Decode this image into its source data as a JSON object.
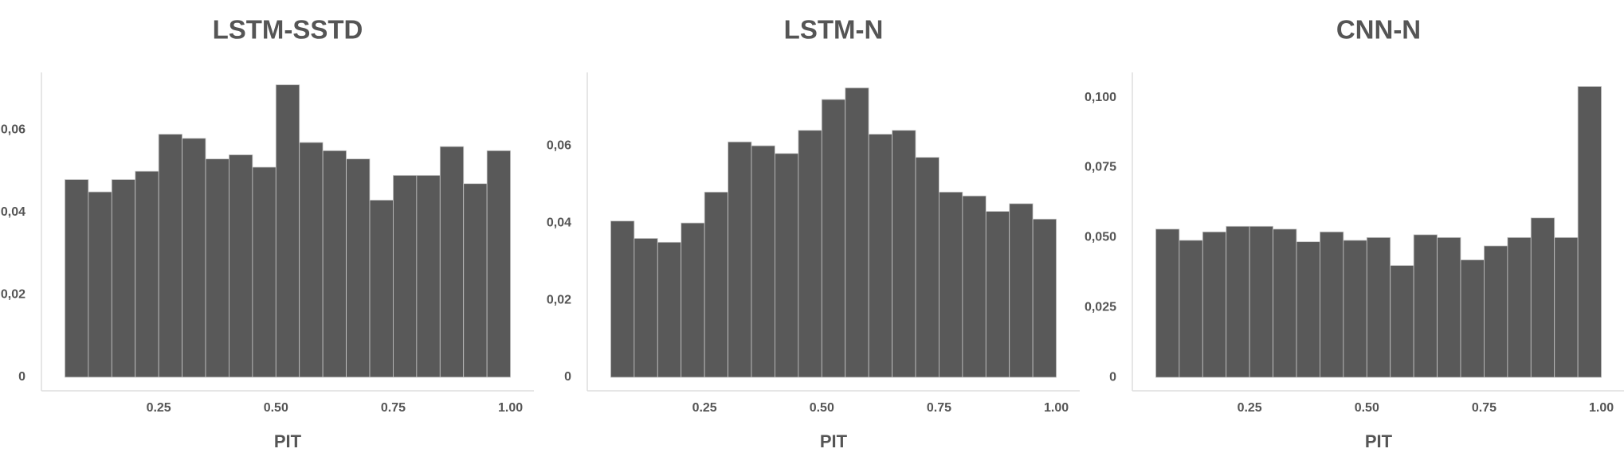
{
  "chart_data": [
    {
      "type": "histogram",
      "title": "LSTM-SSTD",
      "x_label": "PIT",
      "color": "#595959",
      "bins": [
        0.05,
        0.1,
        0.15,
        0.2,
        0.25,
        0.3,
        0.35,
        0.4,
        0.45,
        0.5,
        0.55,
        0.6,
        0.65,
        0.7,
        0.75,
        0.8,
        0.85,
        0.9,
        0.95,
        1.0
      ],
      "values": [
        0.048,
        0.045,
        0.048,
        0.05,
        0.059,
        0.058,
        0.053,
        0.054,
        0.051,
        0.071,
        0.057,
        0.055,
        0.053,
        0.043,
        0.049,
        0.049,
        0.056,
        0.047,
        0.055
      ],
      "xlim": [
        0,
        1.05
      ],
      "ylim": [
        -0.0033,
        0.074
      ],
      "xticks": [
        0.25,
        {
          "value": 0.5,
          "label": "0.50"
        },
        0.75,
        {
          "value": 1.0,
          "label": "1.00"
        }
      ],
      "yticks": [
        0,
        {
          "value": 0.02,
          "label": "0,02"
        },
        {
          "value": 0.04,
          "label": "0,04"
        },
        {
          "value": 0.06,
          "label": "0,06"
        }
      ]
    },
    {
      "type": "histogram",
      "title": "LSTM-N",
      "x_label": "PIT",
      "color": "#595959",
      "bins": [
        0.05,
        0.1,
        0.15,
        0.2,
        0.25,
        0.3,
        0.35,
        0.4,
        0.45,
        0.5,
        0.55,
        0.6,
        0.65,
        0.7,
        0.75,
        0.8,
        0.85,
        0.9,
        0.95,
        1.0
      ],
      "values": [
        0.0405,
        0.036,
        0.035,
        0.04,
        0.048,
        0.061,
        0.06,
        0.058,
        0.064,
        0.072,
        0.075,
        0.063,
        0.064,
        0.057,
        0.048,
        0.047,
        0.043,
        0.045,
        0.041
      ],
      "xlim": [
        0,
        1.05
      ],
      "ylim": [
        -0.0035,
        0.079
      ],
      "xticks": [
        0.25,
        {
          "value": 0.5,
          "label": "0.50"
        },
        0.75,
        {
          "value": 1.0,
          "label": "1.00"
        }
      ],
      "yticks": [
        0,
        {
          "value": 0.02,
          "label": "0,02"
        },
        {
          "value": 0.04,
          "label": "0,04"
        },
        {
          "value": 0.06,
          "label": "0,06"
        }
      ]
    },
    {
      "type": "histogram",
      "title": "CNN-N",
      "x_label": "PIT",
      "color": "#595959",
      "bins": [
        0.05,
        0.1,
        0.15,
        0.2,
        0.25,
        0.3,
        0.35,
        0.4,
        0.45,
        0.5,
        0.55,
        0.6,
        0.65,
        0.7,
        0.75,
        0.8,
        0.85,
        0.9,
        0.95,
        1.0
      ],
      "values": [
        0.053,
        0.049,
        0.052,
        0.054,
        0.054,
        0.053,
        0.0485,
        0.052,
        0.049,
        0.05,
        0.04,
        0.051,
        0.05,
        0.042,
        0.047,
        0.05,
        0.057,
        0.05,
        0.104
      ],
      "xlim": [
        0,
        1.05
      ],
      "ylim": [
        -0.0048,
        0.109
      ],
      "xticks": [
        0.25,
        {
          "value": 0.5,
          "label": "0.50"
        },
        0.75,
        {
          "value": 1.0,
          "label": "1.00"
        }
      ],
      "yticks": [
        0,
        {
          "value": 0.025,
          "label": "0,025"
        },
        {
          "value": 0.05,
          "label": "0,050"
        },
        {
          "value": 0.075,
          "label": "0,075"
        },
        {
          "value": 0.1,
          "label": "0,100"
        }
      ]
    }
  ]
}
